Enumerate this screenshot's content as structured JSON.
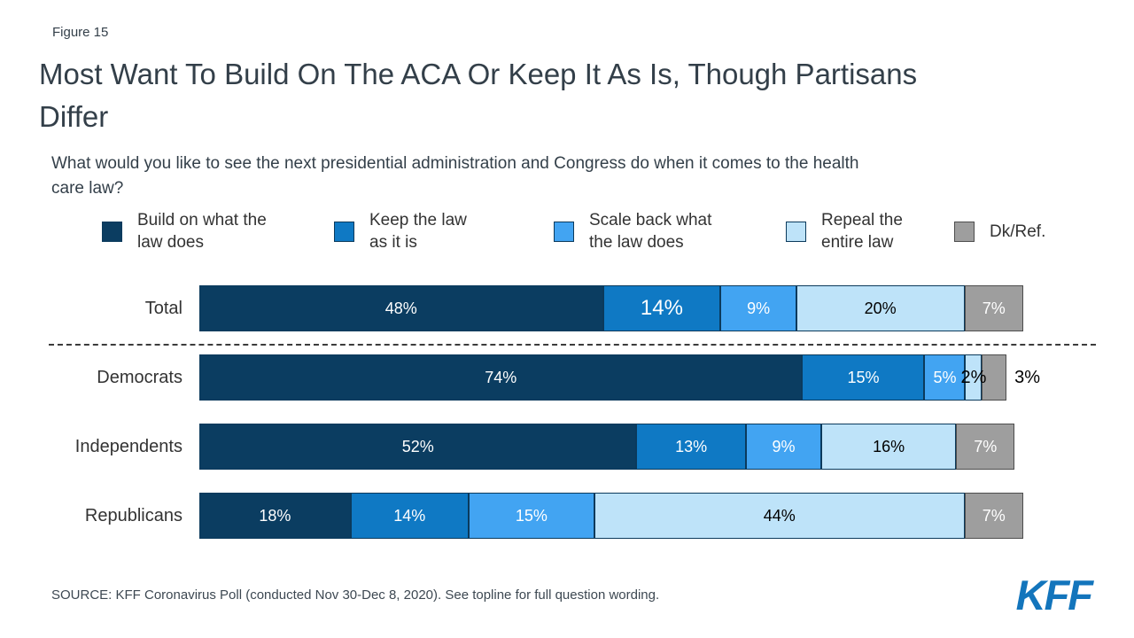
{
  "figure_label": "Figure 15",
  "title_lines": [
    "Most Want To Build On The ACA Or Keep It As Is, Though Partisans",
    "Differ"
  ],
  "question_lines": [
    "What would you like to see the next presidential administration and Congress do when it comes to the health",
    "care law?"
  ],
  "source": "SOURCE: KFF Coronavirus Poll (conducted Nov 30-Dec 8, 2020). See topline for full question wording.",
  "logo_text": "KFF",
  "colors": {
    "navy": "#0b3d61",
    "blue": "#0f79c4",
    "sky": "#42a4f2",
    "pale": "#bee3f9",
    "gray": "#9e9e9e",
    "border_blue": "#0b3a5c",
    "border_gray": "#4d4d4d",
    "logo_blue": "#1375bc"
  },
  "legend": [
    {
      "key": "navy",
      "label": "Build on what the\nlaw does"
    },
    {
      "key": "blue",
      "label": "Keep the law\nas it is"
    },
    {
      "key": "sky",
      "label": "Scale back what\nthe law does"
    },
    {
      "key": "pale",
      "label": "Repeal the\nentire law"
    },
    {
      "key": "gray",
      "label": "Dk/Ref."
    }
  ],
  "chart_data": {
    "type": "bar",
    "orientation": "horizontal",
    "stacked": true,
    "unit": "percent",
    "xlim": [
      0,
      100
    ],
    "title": "What would you like to see the next presidential administration and Congress do when it comes to the health care law?",
    "categories": [
      "Total",
      "Democrats",
      "Independents",
      "Republicans"
    ],
    "series": [
      {
        "name": "Build on what the law does",
        "values": [
          48,
          74,
          52,
          18
        ]
      },
      {
        "name": "Keep the law as it is",
        "values": [
          14,
          15,
          13,
          14
        ]
      },
      {
        "name": "Scale back what the law does",
        "values": [
          9,
          5,
          9,
          15
        ]
      },
      {
        "name": "Repeal the entire law",
        "values": [
          20,
          2,
          16,
          44
        ]
      },
      {
        "name": "Dk/Ref.",
        "values": [
          7,
          3,
          7,
          7
        ]
      }
    ],
    "rows": [
      {
        "label": "Total",
        "segments": [
          {
            "value": 48,
            "text": "48%",
            "key": "navy",
            "text_color": "#ffffff"
          },
          {
            "value": 14,
            "text": "14%",
            "key": "blue",
            "text_color": "#ffffff",
            "size": "big"
          },
          {
            "value": 9,
            "text": "9%",
            "key": "sky",
            "text_color": "#ffffff"
          },
          {
            "value": 20,
            "text": "20%",
            "key": "pale",
            "text_color": "#000000"
          },
          {
            "value": 7,
            "text": "7%",
            "key": "gray",
            "text_color": "#ffffff"
          }
        ]
      },
      {
        "label": "Democrats",
        "segments": [
          {
            "value": 74,
            "text": "74%",
            "key": "navy",
            "text_color": "#ffffff"
          },
          {
            "value": 15,
            "text": "15%",
            "key": "blue",
            "text_color": "#ffffff"
          },
          {
            "value": 5,
            "text": "5%",
            "key": "sky",
            "text_color": "#ffffff"
          },
          {
            "value": 2,
            "text": "2%",
            "key": "pale",
            "text_color": "#000000",
            "size": "mid"
          },
          {
            "value": 3,
            "text": "3%",
            "key": "gray",
            "text_color": "#000000",
            "outside": true
          }
        ]
      },
      {
        "label": "Independents",
        "segments": [
          {
            "value": 52,
            "text": "52%",
            "key": "navy",
            "text_color": "#ffffff"
          },
          {
            "value": 13,
            "text": "13%",
            "key": "blue",
            "text_color": "#ffffff"
          },
          {
            "value": 9,
            "text": "9%",
            "key": "sky",
            "text_color": "#ffffff"
          },
          {
            "value": 16,
            "text": "16%",
            "key": "pale",
            "text_color": "#000000"
          },
          {
            "value": 7,
            "text": "7%",
            "key": "gray",
            "text_color": "#ffffff"
          }
        ]
      },
      {
        "label": "Republicans",
        "segments": [
          {
            "value": 18,
            "text": "18%",
            "key": "navy",
            "text_color": "#ffffff"
          },
          {
            "value": 14,
            "text": "14%",
            "key": "blue",
            "text_color": "#ffffff"
          },
          {
            "value": 15,
            "text": "15%",
            "key": "sky",
            "text_color": "#ffffff"
          },
          {
            "value": 44,
            "text": "44%",
            "key": "pale",
            "text_color": "#000000"
          },
          {
            "value": 7,
            "text": "7%",
            "key": "gray",
            "text_color": "#ffffff"
          }
        ]
      }
    ]
  }
}
